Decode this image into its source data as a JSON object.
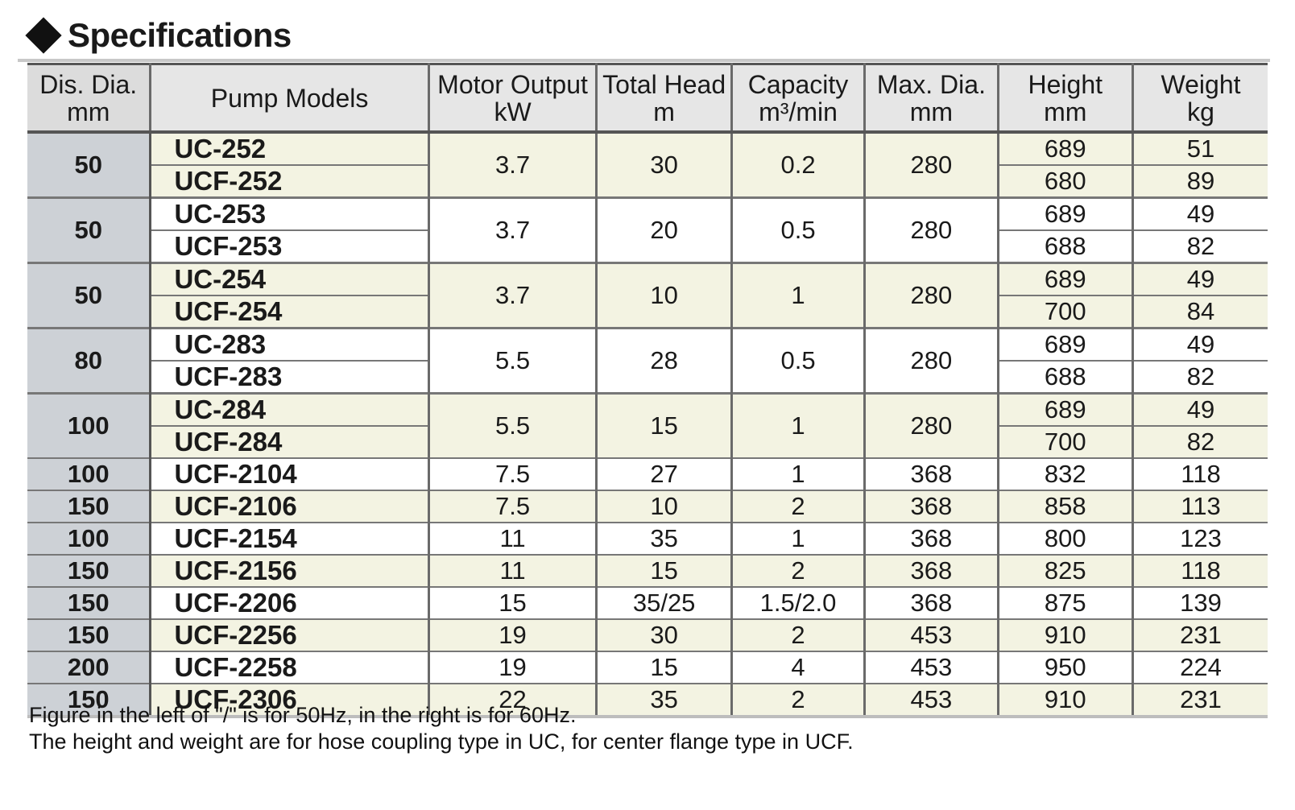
{
  "title": "Specifications",
  "headers": {
    "dis_dia": [
      "Dis. Dia.",
      "mm"
    ],
    "pump_models": "Pump Models",
    "motor_output": [
      "Motor Output",
      "kW"
    ],
    "total_head": [
      "Total Head",
      "m"
    ],
    "capacity": [
      "Capacity",
      "m³/min"
    ],
    "max_dia": [
      "Max. Dia.",
      "mm"
    ],
    "height": [
      "Height",
      "mm"
    ],
    "weight": [
      "Weight",
      "kg"
    ]
  },
  "groups": [
    {
      "dis": "50",
      "motor": "3.7",
      "head": "30",
      "capacity": "0.2",
      "maxdia": "280",
      "models": [
        {
          "model": "UC-252",
          "height": "689",
          "weight": "51"
        },
        {
          "model": "UCF-252",
          "height": "680",
          "weight": "89"
        }
      ]
    },
    {
      "dis": "50",
      "motor": "3.7",
      "head": "20",
      "capacity": "0.5",
      "maxdia": "280",
      "models": [
        {
          "model": "UC-253",
          "height": "689",
          "weight": "49"
        },
        {
          "model": "UCF-253",
          "height": "688",
          "weight": "82"
        }
      ]
    },
    {
      "dis": "50",
      "motor": "3.7",
      "head": "10",
      "capacity": "1",
      "maxdia": "280",
      "models": [
        {
          "model": "UC-254",
          "height": "689",
          "weight": "49"
        },
        {
          "model": "UCF-254",
          "height": "700",
          "weight": "84"
        }
      ]
    },
    {
      "dis": "80",
      "motor": "5.5",
      "head": "28",
      "capacity": "0.5",
      "maxdia": "280",
      "models": [
        {
          "model": "UC-283",
          "height": "689",
          "weight": "49"
        },
        {
          "model": "UCF-283",
          "height": "688",
          "weight": "82"
        }
      ]
    },
    {
      "dis": "100",
      "motor": "5.5",
      "head": "15",
      "capacity": "1",
      "maxdia": "280",
      "models": [
        {
          "model": "UC-284",
          "height": "689",
          "weight": "49"
        },
        {
          "model": "UCF-284",
          "height": "700",
          "weight": "82"
        }
      ]
    },
    {
      "dis": "100",
      "motor": "7.5",
      "head": "27",
      "capacity": "1",
      "maxdia": "368",
      "models": [
        {
          "model": "UCF-2104",
          "height": "832",
          "weight": "118"
        }
      ]
    },
    {
      "dis": "150",
      "motor": "7.5",
      "head": "10",
      "capacity": "2",
      "maxdia": "368",
      "models": [
        {
          "model": "UCF-2106",
          "height": "858",
          "weight": "113"
        }
      ]
    },
    {
      "dis": "100",
      "motor": "11",
      "head": "35",
      "capacity": "1",
      "maxdia": "368",
      "models": [
        {
          "model": "UCF-2154",
          "height": "800",
          "weight": "123"
        }
      ]
    },
    {
      "dis": "150",
      "motor": "11",
      "head": "15",
      "capacity": "2",
      "maxdia": "368",
      "models": [
        {
          "model": "UCF-2156",
          "height": "825",
          "weight": "118"
        }
      ]
    },
    {
      "dis": "150",
      "motor": "15",
      "head": "35/25",
      "capacity": "1.5/2.0",
      "maxdia": "368",
      "models": [
        {
          "model": "UCF-2206",
          "height": "875",
          "weight": "139"
        }
      ]
    },
    {
      "dis": "150",
      "motor": "19",
      "head": "30",
      "capacity": "2",
      "maxdia": "453",
      "models": [
        {
          "model": "UCF-2256",
          "height": "910",
          "weight": "231"
        }
      ]
    },
    {
      "dis": "200",
      "motor": "19",
      "head": "15",
      "capacity": "4",
      "maxdia": "453",
      "models": [
        {
          "model": "UCF-2258",
          "height": "950",
          "weight": "224"
        }
      ]
    },
    {
      "dis": "150",
      "motor": "22",
      "head": "35",
      "capacity": "2",
      "maxdia": "453",
      "models": [
        {
          "model": "UCF-2306",
          "height": "910",
          "weight": "231"
        }
      ]
    }
  ],
  "notes": [
    "Figure in the left of \"/\" is for 50Hz, in the right is for 60Hz.",
    "The height and weight are for hose coupling type in UC, for center flange type in UCF."
  ],
  "colors": {
    "header_bg": "#e6e6e6",
    "dis_col_bg": "#cdd1d6",
    "shaded_row_bg": "#f3f3e2",
    "white_row_bg": "#ffffff"
  }
}
